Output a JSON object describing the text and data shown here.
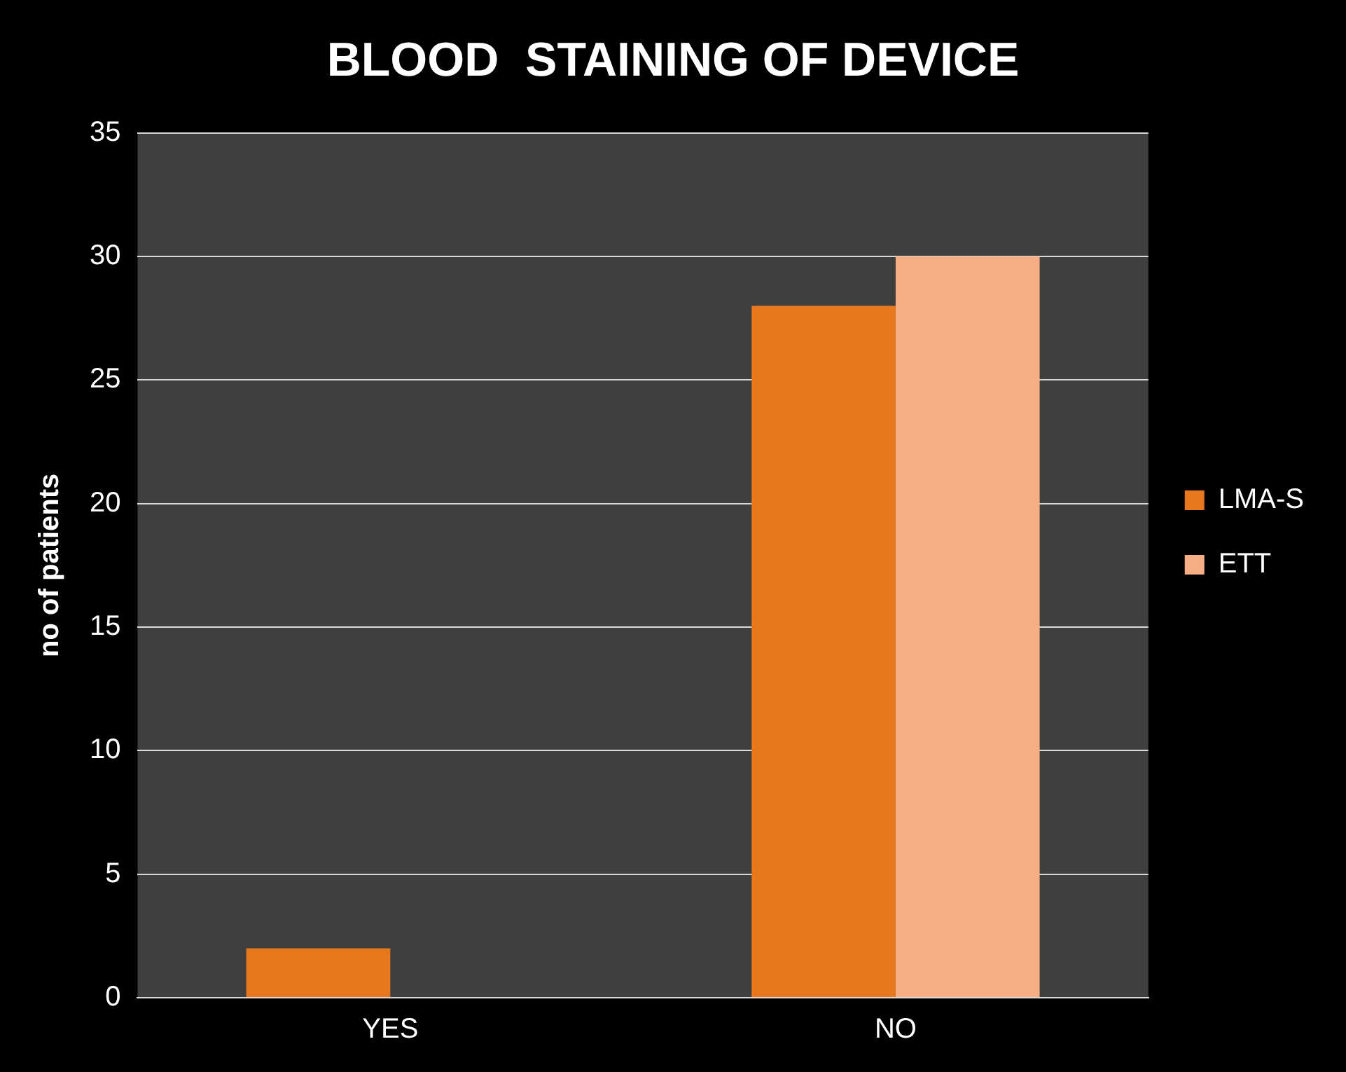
{
  "chart_data": {
    "type": "bar",
    "title": "BLOOD  STAINING OF DEVICE",
    "ylabel": "no of patients",
    "categories": [
      "YES",
      "NO"
    ],
    "series": [
      {
        "name": "LMA-S",
        "color": "#e8781e",
        "values": [
          2,
          28
        ]
      },
      {
        "name": "ETT",
        "color": "#f6ae84",
        "values": [
          0,
          30
        ]
      }
    ],
    "ylim": [
      0,
      35
    ],
    "yticks": [
      0,
      5,
      10,
      15,
      20,
      25,
      30,
      35
    ],
    "grid": "y",
    "legend": "right"
  }
}
